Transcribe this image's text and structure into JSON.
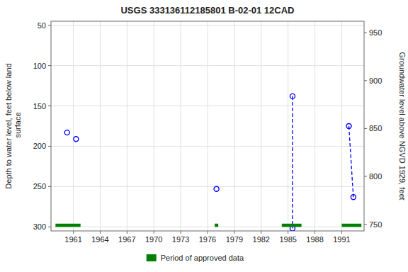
{
  "chart_data": {
    "type": "scatter",
    "title": "USGS 333136112185801 B-02-01 12CAD",
    "y_label": "Depth to water level, feet below land\n surface",
    "y2_label": "Groundwater level above NGVD 1929, feet",
    "xlim": [
      1958.5,
      1993.5
    ],
    "xticks": [
      1961,
      1964,
      1967,
      1970,
      1973,
      1976,
      1979,
      1982,
      1985,
      1988,
      1991
    ],
    "ylim": [
      305,
      45
    ],
    "yticks": [
      50,
      100,
      150,
      200,
      250,
      300
    ],
    "y2lim": [
      743,
      962
    ],
    "y2ticks": [
      750,
      800,
      850,
      900,
      950
    ],
    "grid": true,
    "legend": "bottom",
    "series": [
      {
        "type": "scatter",
        "color": "blue",
        "marker": "circle",
        "x": [
          1960.3,
          1961.3,
          1977.0,
          1985.5,
          1985.5,
          1991.8,
          1992.3
        ],
        "values": [
          183,
          191,
          253,
          138,
          302,
          175,
          263
        ]
      },
      {
        "type": "line",
        "color": "blue",
        "line_style": "dashed",
        "x": [
          1985.5,
          1985.5,
          null,
          1991.8,
          1992.3
        ],
        "values": [
          138,
          302,
          null,
          175,
          263
        ]
      },
      {
        "type": "span",
        "name": "Period of approved data",
        "color": "#008000",
        "x_start": [
          1959.0,
          1976.8,
          1984.3,
          1991.0
        ],
        "x_end": [
          1961.8,
          1977.2,
          1986.5,
          1993.2
        ],
        "y_top": 300,
        "bar_height": 4
      }
    ]
  }
}
